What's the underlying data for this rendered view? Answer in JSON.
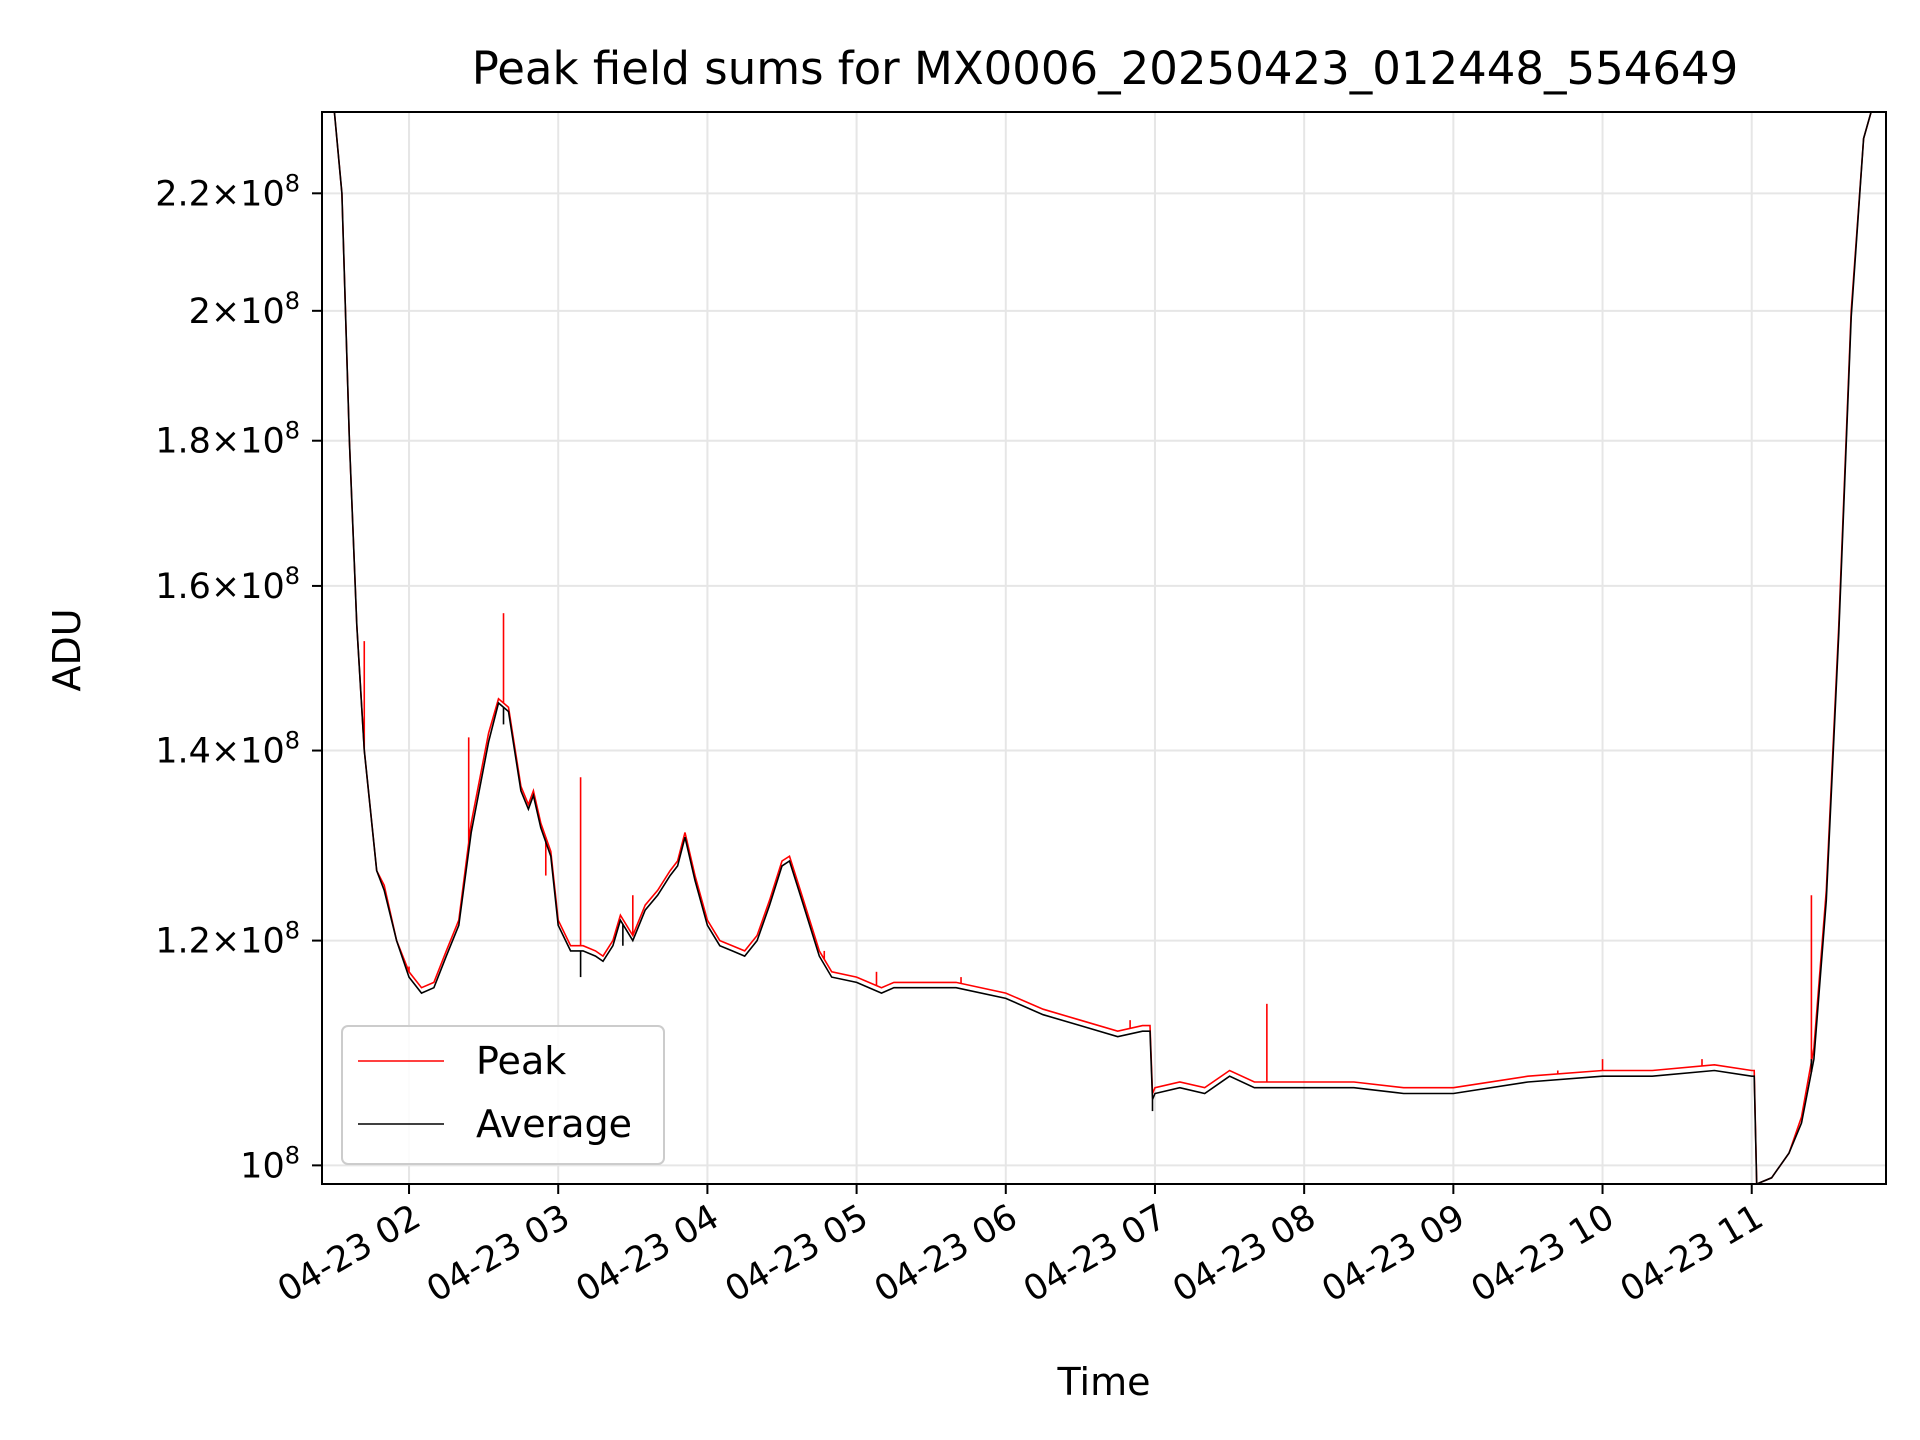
{
  "chart_data": {
    "type": "line",
    "title": "Peak field sums for MX0006_20250423_012448_554649",
    "xlabel": "Time",
    "ylabel": "ADU",
    "yscale": "log",
    "xlim": [
      "2025-04-23 01:25",
      "2025-04-23 11:54"
    ],
    "ylim": [
      98500000.0,
      235000000.0
    ],
    "grid": true,
    "legend_position": "lower-left",
    "x_ticks": [
      {
        "t": "2025-04-23 02:00",
        "label": "04-23 02"
      },
      {
        "t": "2025-04-23 03:00",
        "label": "04-23 03"
      },
      {
        "t": "2025-04-23 04:00",
        "label": "04-23 04"
      },
      {
        "t": "2025-04-23 05:00",
        "label": "04-23 05"
      },
      {
        "t": "2025-04-23 06:00",
        "label": "04-23 06"
      },
      {
        "t": "2025-04-23 07:00",
        "label": "04-23 07"
      },
      {
        "t": "2025-04-23 08:00",
        "label": "04-23 08"
      },
      {
        "t": "2025-04-23 09:00",
        "label": "04-23 09"
      },
      {
        "t": "2025-04-23 10:00",
        "label": "04-23 10"
      },
      {
        "t": "2025-04-23 11:00",
        "label": "04-23 11"
      }
    ],
    "y_ticks": [
      {
        "value": 100000000.0,
        "mantissa": "",
        "exponent": "8"
      },
      {
        "value": 120000000.0,
        "mantissa": "1.2",
        "exponent": "8"
      },
      {
        "value": 140000000.0,
        "mantissa": "1.4",
        "exponent": "8"
      },
      {
        "value": 160000000.0,
        "mantissa": "1.6",
        "exponent": "8"
      },
      {
        "value": 180000000.0,
        "mantissa": "1.8",
        "exponent": "8"
      },
      {
        "value": 200000000.0,
        "mantissa": "2",
        "exponent": "8"
      },
      {
        "value": 220000000.0,
        "mantissa": "2.2",
        "exponent": "8"
      }
    ],
    "y_tick_times": "×",
    "y_tick_base": "10",
    "series": [
      {
        "name": "Peak",
        "color": "#ff0000",
        "points": [
          [
            "2025-04-23 01:25",
            235000000.0
          ],
          [
            "2025-04-23 01:30",
            235000000.0
          ],
          [
            "2025-04-23 01:33",
            220000000.0
          ],
          [
            "2025-04-23 01:36",
            180000000.0
          ],
          [
            "2025-04-23 01:39",
            155000000.0
          ],
          [
            "2025-04-23 01:42",
            140000000.0
          ],
          [
            "2025-04-23 01:47",
            127000000.0
          ],
          [
            "2025-04-23 01:50",
            125500000.0
          ],
          [
            "2025-04-23 01:55",
            120000000.0
          ],
          [
            "2025-04-23 02:00",
            117000000.0
          ],
          [
            "2025-04-23 02:05",
            115500000.0
          ],
          [
            "2025-04-23 02:10",
            116000000.0
          ],
          [
            "2025-04-23 02:15",
            119000000.0
          ],
          [
            "2025-04-23 02:20",
            122000000.0
          ],
          [
            "2025-04-23 02:25",
            132000000.0
          ],
          [
            "2025-04-23 02:32",
            142000000.0
          ],
          [
            "2025-04-23 02:36",
            146000000.0
          ],
          [
            "2025-04-23 02:40",
            145000000.0
          ],
          [
            "2025-04-23 02:45",
            136000000.0
          ],
          [
            "2025-04-23 02:48",
            134000000.0
          ],
          [
            "2025-04-23 02:50",
            135500000.0
          ],
          [
            "2025-04-23 02:53",
            132000000.0
          ],
          [
            "2025-04-23 02:57",
            129000000.0
          ],
          [
            "2025-04-23 03:00",
            122000000.0
          ],
          [
            "2025-04-23 03:05",
            119500000.0
          ],
          [
            "2025-04-23 03:10",
            119500000.0
          ],
          [
            "2025-04-23 03:15",
            119000000.0
          ],
          [
            "2025-04-23 03:18",
            118500000.0
          ],
          [
            "2025-04-23 03:22",
            120000000.0
          ],
          [
            "2025-04-23 03:25",
            122500000.0
          ],
          [
            "2025-04-23 03:30",
            120500000.0
          ],
          [
            "2025-04-23 03:35",
            123500000.0
          ],
          [
            "2025-04-23 03:40",
            125000000.0
          ],
          [
            "2025-04-23 03:45",
            127000000.0
          ],
          [
            "2025-04-23 03:48",
            128000000.0
          ],
          [
            "2025-04-23 03:51",
            131000000.0
          ],
          [
            "2025-04-23 03:55",
            126500000.0
          ],
          [
            "2025-04-23 04:00",
            122000000.0
          ],
          [
            "2025-04-23 04:05",
            120000000.0
          ],
          [
            "2025-04-23 04:10",
            119500000.0
          ],
          [
            "2025-04-23 04:15",
            119000000.0
          ],
          [
            "2025-04-23 04:20",
            120500000.0
          ],
          [
            "2025-04-23 04:25",
            124000000.0
          ],
          [
            "2025-04-23 04:30",
            128000000.0
          ],
          [
            "2025-04-23 04:33",
            128500000.0
          ],
          [
            "2025-04-23 04:38",
            124500000.0
          ],
          [
            "2025-04-23 04:45",
            119000000.0
          ],
          [
            "2025-04-23 04:50",
            117000000.0
          ],
          [
            "2025-04-23 05:00",
            116500000.0
          ],
          [
            "2025-04-23 05:10",
            115500000.0
          ],
          [
            "2025-04-23 05:15",
            116000000.0
          ],
          [
            "2025-04-23 05:20",
            116000000.0
          ],
          [
            "2025-04-23 05:40",
            116000000.0
          ],
          [
            "2025-04-23 06:00",
            115000000.0
          ],
          [
            "2025-04-23 06:15",
            113500000.0
          ],
          [
            "2025-04-23 06:30",
            112500000.0
          ],
          [
            "2025-04-23 06:45",
            111500000.0
          ],
          [
            "2025-04-23 06:55",
            112000000.0
          ],
          [
            "2025-04-23 06:58",
            112000000.0
          ],
          [
            "2025-04-23 06:59",
            106000000.0
          ],
          [
            "2025-04-23 07:00",
            106500000.0
          ],
          [
            "2025-04-23 07:10",
            107000000.0
          ],
          [
            "2025-04-23 07:20",
            106500000.0
          ],
          [
            "2025-04-23 07:30",
            108000000.0
          ],
          [
            "2025-04-23 07:40",
            107000000.0
          ],
          [
            "2025-04-23 08:00",
            107000000.0
          ],
          [
            "2025-04-23 08:20",
            107000000.0
          ],
          [
            "2025-04-23 08:40",
            106500000.0
          ],
          [
            "2025-04-23 09:00",
            106500000.0
          ],
          [
            "2025-04-23 09:30",
            107500000.0
          ],
          [
            "2025-04-23 10:00",
            108000000.0
          ],
          [
            "2025-04-23 10:20",
            108000000.0
          ],
          [
            "2025-04-23 10:45",
            108500000.0
          ],
          [
            "2025-04-23 11:00",
            108000000.0
          ],
          [
            "2025-04-23 11:01",
            108000000.0
          ],
          [
            "2025-04-23 11:02",
            98500000.0
          ],
          [
            "2025-04-23 11:08",
            99000000.0
          ],
          [
            "2025-04-23 11:15",
            101000000.0
          ],
          [
            "2025-04-23 11:20",
            104000000.0
          ],
          [
            "2025-04-23 11:25",
            110000000.0
          ],
          [
            "2025-04-23 11:30",
            125000000.0
          ],
          [
            "2025-04-23 11:35",
            155000000.0
          ],
          [
            "2025-04-23 11:40",
            200000000.0
          ],
          [
            "2025-04-23 11:45",
            230000000.0
          ],
          [
            "2025-04-23 11:48",
            235000000.0
          ],
          [
            "2025-04-23 11:54",
            235000000.0
          ]
        ],
        "spikes": [
          [
            "2025-04-23 01:42",
            153000000.0
          ],
          [
            "2025-04-23 01:48",
            126500000.0
          ],
          [
            "2025-04-23 01:53",
            122000000.0
          ],
          [
            "2025-04-23 02:00",
            117500000.0
          ],
          [
            "2025-04-23 02:24",
            141500000.0
          ],
          [
            "2025-04-23 02:38",
            156500000.0
          ],
          [
            "2025-04-23 02:55",
            126500000.0
          ],
          [
            "2025-04-23 03:09",
            137000000.0
          ],
          [
            "2025-04-23 03:30",
            124500000.0
          ],
          [
            "2025-04-23 04:47",
            119000000.0
          ],
          [
            "2025-04-23 05:08",
            117000000.0
          ],
          [
            "2025-04-23 05:42",
            116500000.0
          ],
          [
            "2025-04-23 06:50",
            112500000.0
          ],
          [
            "2025-04-23 07:45",
            114000000.0
          ],
          [
            "2025-04-23 09:42",
            108000000.0
          ],
          [
            "2025-04-23 10:00",
            109000000.0
          ],
          [
            "2025-04-23 10:40",
            109000000.0
          ],
          [
            "2025-04-23 11:24",
            124500000.0
          ]
        ]
      },
      {
        "name": "Average",
        "color": "#000000",
        "points": [
          [
            "2025-04-23 01:25",
            235000000.0
          ],
          [
            "2025-04-23 01:30",
            235000000.0
          ],
          [
            "2025-04-23 01:33",
            220000000.0
          ],
          [
            "2025-04-23 01:36",
            180000000.0
          ],
          [
            "2025-04-23 01:39",
            155000000.0
          ],
          [
            "2025-04-23 01:42",
            140000000.0
          ],
          [
            "2025-04-23 01:47",
            127000000.0
          ],
          [
            "2025-04-23 01:50",
            125000000.0
          ],
          [
            "2025-04-23 01:55",
            120000000.0
          ],
          [
            "2025-04-23 02:00",
            116500000.0
          ],
          [
            "2025-04-23 02:05",
            115000000.0
          ],
          [
            "2025-04-23 02:10",
            115500000.0
          ],
          [
            "2025-04-23 02:15",
            118500000.0
          ],
          [
            "2025-04-23 02:20",
            121500000.0
          ],
          [
            "2025-04-23 02:25",
            131000000.0
          ],
          [
            "2025-04-23 02:32",
            141000000.0
          ],
          [
            "2025-04-23 02:36",
            145500000.0
          ],
          [
            "2025-04-23 02:40",
            144500000.0
          ],
          [
            "2025-04-23 02:45",
            135500000.0
          ],
          [
            "2025-04-23 02:48",
            133500000.0
          ],
          [
            "2025-04-23 02:50",
            135000000.0
          ],
          [
            "2025-04-23 02:53",
            131500000.0
          ],
          [
            "2025-04-23 02:57",
            128500000.0
          ],
          [
            "2025-04-23 03:00",
            121500000.0
          ],
          [
            "2025-04-23 03:05",
            119000000.0
          ],
          [
            "2025-04-23 03:10",
            119000000.0
          ],
          [
            "2025-04-23 03:15",
            118500000.0
          ],
          [
            "2025-04-23 03:18",
            118000000.0
          ],
          [
            "2025-04-23 03:22",
            119500000.0
          ],
          [
            "2025-04-23 03:25",
            122000000.0
          ],
          [
            "2025-04-23 03:30",
            120000000.0
          ],
          [
            "2025-04-23 03:35",
            123000000.0
          ],
          [
            "2025-04-23 03:40",
            124500000.0
          ],
          [
            "2025-04-23 03:45",
            126500000.0
          ],
          [
            "2025-04-23 03:48",
            127500000.0
          ],
          [
            "2025-04-23 03:51",
            130500000.0
          ],
          [
            "2025-04-23 03:55",
            126000000.0
          ],
          [
            "2025-04-23 04:00",
            121500000.0
          ],
          [
            "2025-04-23 04:05",
            119500000.0
          ],
          [
            "2025-04-23 04:10",
            119000000.0
          ],
          [
            "2025-04-23 04:15",
            118500000.0
          ],
          [
            "2025-04-23 04:20",
            120000000.0
          ],
          [
            "2025-04-23 04:25",
            123500000.0
          ],
          [
            "2025-04-23 04:30",
            127500000.0
          ],
          [
            "2025-04-23 04:33",
            128000000.0
          ],
          [
            "2025-04-23 04:38",
            124000000.0
          ],
          [
            "2025-04-23 04:45",
            118500000.0
          ],
          [
            "2025-04-23 04:50",
            116500000.0
          ],
          [
            "2025-04-23 05:00",
            116000000.0
          ],
          [
            "2025-04-23 05:10",
            115000000.0
          ],
          [
            "2025-04-23 05:15",
            115500000.0
          ],
          [
            "2025-04-23 05:20",
            115500000.0
          ],
          [
            "2025-04-23 05:40",
            115500000.0
          ],
          [
            "2025-04-23 06:00",
            114500000.0
          ],
          [
            "2025-04-23 06:15",
            113000000.0
          ],
          [
            "2025-04-23 06:30",
            112000000.0
          ],
          [
            "2025-04-23 06:45",
            111000000.0
          ],
          [
            "2025-04-23 06:55",
            111500000.0
          ],
          [
            "2025-04-23 06:58",
            111500000.0
          ],
          [
            "2025-04-23 06:59",
            105500000.0
          ],
          [
            "2025-04-23 07:00",
            106000000.0
          ],
          [
            "2025-04-23 07:10",
            106500000.0
          ],
          [
            "2025-04-23 07:20",
            106000000.0
          ],
          [
            "2025-04-23 07:30",
            107500000.0
          ],
          [
            "2025-04-23 07:40",
            106500000.0
          ],
          [
            "2025-04-23 08:00",
            106500000.0
          ],
          [
            "2025-04-23 08:20",
            106500000.0
          ],
          [
            "2025-04-23 08:40",
            106000000.0
          ],
          [
            "2025-04-23 09:00",
            106000000.0
          ],
          [
            "2025-04-23 09:30",
            107000000.0
          ],
          [
            "2025-04-23 10:00",
            107500000.0
          ],
          [
            "2025-04-23 10:20",
            107500000.0
          ],
          [
            "2025-04-23 10:45",
            108000000.0
          ],
          [
            "2025-04-23 11:00",
            107500000.0
          ],
          [
            "2025-04-23 11:01",
            107500000.0
          ],
          [
            "2025-04-23 11:02",
            98500000.0
          ],
          [
            "2025-04-23 11:08",
            99000000.0
          ],
          [
            "2025-04-23 11:15",
            101000000.0
          ],
          [
            "2025-04-23 11:20",
            103500000.0
          ],
          [
            "2025-04-23 11:25",
            109000000.0
          ],
          [
            "2025-04-23 11:30",
            124000000.0
          ],
          [
            "2025-04-23 11:35",
            154000000.0
          ],
          [
            "2025-04-23 11:40",
            199000000.0
          ],
          [
            "2025-04-23 11:45",
            230000000.0
          ],
          [
            "2025-04-23 11:48",
            235000000.0
          ],
          [
            "2025-04-23 11:54",
            235000000.0
          ]
        ],
        "spikes": [
          [
            "2025-04-23 03:09",
            116500000.0
          ],
          [
            "2025-04-23 02:38",
            143000000.0
          ],
          [
            "2025-04-23 06:59",
            104500000.0
          ],
          [
            "2025-04-23 03:26",
            119500000.0
          ],
          [
            "2025-04-23 11:24",
            109000000.0
          ]
        ]
      }
    ]
  }
}
